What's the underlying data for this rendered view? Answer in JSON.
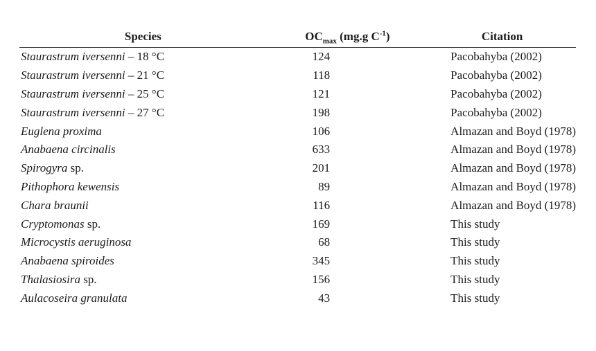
{
  "table": {
    "headers": {
      "species": "Species",
      "oc_base": "OC",
      "oc_sub": "max",
      "oc_unit_open": " (mg.g C",
      "oc_sup": "-1",
      "oc_unit_close": ")",
      "citation": "Citation"
    },
    "rows": [
      {
        "species_italic": "Staurastrum iversenni",
        "species_plain": " – 18 °C",
        "value": "124",
        "citation": "Pacobahyba (2002)"
      },
      {
        "species_italic": "Staurastrum iversenni",
        "species_plain": " – 21 °C",
        "value": "118",
        "citation": "Pacobahyba (2002)"
      },
      {
        "species_italic": "Staurastrum iversenni",
        "species_plain": " – 25 °C",
        "value": "121",
        "citation": "Pacobahyba (2002)"
      },
      {
        "species_italic": "Staurastrum iversenni",
        "species_plain": " – 27 °C",
        "value": "198",
        "citation": "Pacobahyba (2002)"
      },
      {
        "species_italic": "Euglena proxima",
        "species_plain": "",
        "value": "106",
        "citation": "Almazan and Boyd (1978)"
      },
      {
        "species_italic": "Anabaena circinalis",
        "species_plain": "",
        "value": "633",
        "citation": "Almazan and Boyd (1978)"
      },
      {
        "species_italic": "Spirogyra",
        "species_plain": " sp.",
        "value": "201",
        "citation": "Almazan and Boyd (1978)"
      },
      {
        "species_italic": "Pithophora kewensis",
        "species_plain": "",
        "value": "89",
        "citation": "Almazan and Boyd (1978)"
      },
      {
        "species_italic": "Chara braunii",
        "species_plain": "",
        "value": "116",
        "citation": "Almazan and Boyd (1978)"
      },
      {
        "species_italic": "Cryptomonas",
        "species_plain": " sp.",
        "value": "169",
        "citation": "This study"
      },
      {
        "species_italic": "Microcystis aeruginosa",
        "species_plain": "",
        "value": "68",
        "citation": "This study"
      },
      {
        "species_italic": "Anabaena spiroides",
        "species_plain": "",
        "value": "345",
        "citation": "This study"
      },
      {
        "species_italic": "Thalasiosira",
        "species_plain": " sp.",
        "value": "156",
        "citation": "This study"
      },
      {
        "species_italic": "Aulacoseira granulata",
        "species_plain": "",
        "value": "43",
        "citation": "This study"
      }
    ]
  }
}
